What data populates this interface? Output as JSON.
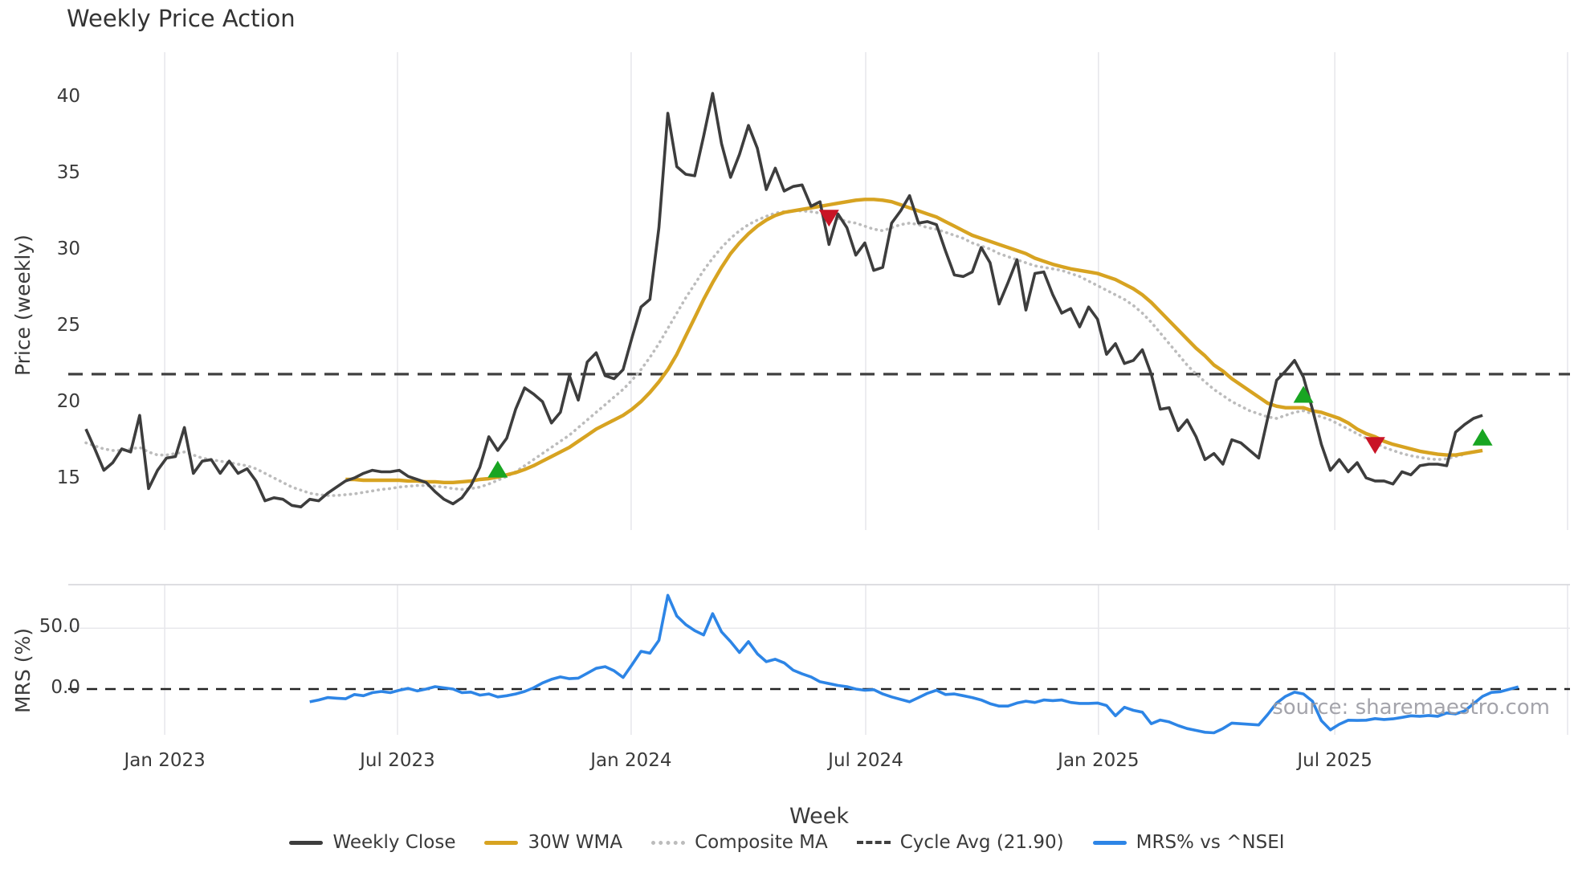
{
  "title": "Weekly Price Action",
  "source_note": "source: sharemaestro.com",
  "x_axis_title": "Week",
  "price_axis_label": "Price (weekly)",
  "mrs_axis_label": "MRS (%)",
  "legend": [
    {
      "label": "Weekly Close",
      "style": "solid",
      "color": "#3d3d3d"
    },
    {
      "label": "30W WMA",
      "style": "solid",
      "color": "#d7a321"
    },
    {
      "label": "Composite MA",
      "style": "dotted",
      "color": "#bcbcbc"
    },
    {
      "label": "Cycle Avg (21.90)",
      "style": "dashed",
      "color": "#404040"
    },
    {
      "label": "MRS% vs ^NSEI",
      "style": "solid",
      "color": "#2d85e6"
    }
  ],
  "colors": {
    "weekly_close": "#3d3d3d",
    "wma30": "#d7a321",
    "composite": "#bcbcbc",
    "cycle_avg": "#404040",
    "mrs": "#2d85e6",
    "buy_marker": "#18a522",
    "sell_marker": "#c91426",
    "gridline": "#e8e8ec",
    "panel_border": "#d4d4d8",
    "zero_dash": "#222222"
  },
  "x_ticks": [
    {
      "label": "Jan 2023",
      "week": 8.8
    },
    {
      "label": "Jul 2023",
      "week": 34.8
    },
    {
      "label": "Jan 2024",
      "week": 60.9
    },
    {
      "label": "Jul 2024",
      "week": 87.1
    },
    {
      "label": "Jan 2025",
      "week": 113.1
    },
    {
      "label": "Jul 2025",
      "week": 139.5
    },
    {
      "label": "",
      "week": 165.5
    }
  ],
  "chart_data": [
    {
      "type": "line",
      "title": "Weekly Price Action",
      "ylabel": "Price (weekly)",
      "xlabel": "Week",
      "x_unit": "week_index (week 0 = first plotted week, ~Nov 2022; 26.1 weeks per axis half-year)",
      "xlim": [
        -2.2,
        165.9
      ],
      "ylim": [
        11.7,
        43.0
      ],
      "yticks": [
        15,
        20,
        25,
        30,
        35,
        40
      ],
      "grid": "vertical-only",
      "cycle_avg_line": 21.9,
      "series": [
        {
          "name": "Weekly Close",
          "style": "solid",
          "start_week": 0,
          "values": [
            18.3,
            17.0,
            15.6,
            16.1,
            17.0,
            16.8,
            19.2,
            14.4,
            15.6,
            16.4,
            16.5,
            18.4,
            15.4,
            16.2,
            16.3,
            15.4,
            16.2,
            15.4,
            15.7,
            14.9,
            13.6,
            13.8,
            13.7,
            13.3,
            13.2,
            13.7,
            13.6,
            14.1,
            14.5,
            14.9,
            15.1,
            15.4,
            15.6,
            15.5,
            15.5,
            15.6,
            15.2,
            15.0,
            14.8,
            14.2,
            13.7,
            13.4,
            13.8,
            14.6,
            15.8,
            17.8,
            16.9,
            17.7,
            19.6,
            21.0,
            20.6,
            20.1,
            18.7,
            19.4,
            21.8,
            20.2,
            22.7,
            23.3,
            21.8,
            21.6,
            22.2,
            24.3,
            26.3,
            26.8,
            31.5,
            39.0,
            35.5,
            35.0,
            34.9,
            37.5,
            40.3,
            37.0,
            34.8,
            36.3,
            38.2,
            36.7,
            34.0,
            35.4,
            33.9,
            34.2,
            34.3,
            32.9,
            33.2,
            30.4,
            32.4,
            31.5,
            29.7,
            30.5,
            28.7,
            28.9,
            31.8,
            32.6,
            33.6,
            31.8,
            31.9,
            31.7,
            30.0,
            28.4,
            28.3,
            28.6,
            30.2,
            29.2,
            26.5,
            27.9,
            29.4,
            26.1,
            28.5,
            28.6,
            27.1,
            25.9,
            26.2,
            25.0,
            26.3,
            25.5,
            23.2,
            23.9,
            22.6,
            22.8,
            23.5,
            21.9,
            19.6,
            19.7,
            18.2,
            18.9,
            17.8,
            16.3,
            16.7,
            16.0,
            17.6,
            17.4,
            16.9,
            16.4,
            19.0,
            21.5,
            22.1,
            22.8,
            21.7,
            19.6,
            17.3,
            15.6,
            16.3,
            15.5,
            16.1,
            15.1,
            14.9,
            14.9,
            14.7,
            15.5,
            15.3,
            15.9,
            16.0,
            16.0,
            15.9,
            18.1,
            18.6,
            19.0,
            19.2
          ]
        },
        {
          "name": "30W WMA",
          "style": "solid",
          "start_week": 29,
          "values": [
            15.0,
            15.0,
            14.95,
            14.95,
            14.95,
            14.95,
            14.95,
            14.9,
            14.9,
            14.85,
            14.85,
            14.8,
            14.8,
            14.85,
            14.9,
            15.0,
            15.05,
            15.15,
            15.3,
            15.45,
            15.65,
            15.9,
            16.2,
            16.5,
            16.8,
            17.1,
            17.5,
            17.9,
            18.3,
            18.6,
            18.9,
            19.2,
            19.6,
            20.1,
            20.7,
            21.4,
            22.2,
            23.2,
            24.4,
            25.6,
            26.8,
            27.9,
            28.9,
            29.8,
            30.5,
            31.1,
            31.6,
            32.0,
            32.3,
            32.5,
            32.6,
            32.7,
            32.8,
            32.9,
            33.0,
            33.1,
            33.2,
            33.3,
            33.35,
            33.35,
            33.3,
            33.2,
            33.0,
            32.8,
            32.6,
            32.4,
            32.2,
            31.9,
            31.6,
            31.3,
            31.0,
            30.8,
            30.6,
            30.4,
            30.2,
            30.0,
            29.8,
            29.5,
            29.3,
            29.1,
            28.95,
            28.8,
            28.7,
            28.6,
            28.5,
            28.3,
            28.1,
            27.8,
            27.5,
            27.1,
            26.6,
            26.0,
            25.4,
            24.8,
            24.2,
            23.6,
            23.1,
            22.5,
            22.1,
            21.6,
            21.2,
            20.8,
            20.4,
            20.0,
            19.8,
            19.7,
            19.7,
            19.7,
            19.5,
            19.4,
            19.2,
            19.0,
            18.7,
            18.3,
            18.0,
            17.8,
            17.5,
            17.3,
            17.15,
            17.0,
            16.85,
            16.75,
            16.65,
            16.6,
            16.6,
            16.7,
            16.8,
            16.9
          ]
        },
        {
          "name": "Composite MA",
          "style": "dotted",
          "start_week": 0,
          "values": [
            17.4,
            17.2,
            17.0,
            16.9,
            16.9,
            17.0,
            17.1,
            16.8,
            16.6,
            16.6,
            16.7,
            16.8,
            16.6,
            16.4,
            16.3,
            16.2,
            16.1,
            16.0,
            15.9,
            15.7,
            15.4,
            15.1,
            14.8,
            14.5,
            14.3,
            14.1,
            14.0,
            13.95,
            13.95,
            14.0,
            14.05,
            14.15,
            14.25,
            14.35,
            14.4,
            14.5,
            14.55,
            14.6,
            14.6,
            14.55,
            14.5,
            14.4,
            14.35,
            14.4,
            14.5,
            14.7,
            14.95,
            15.2,
            15.5,
            15.9,
            16.3,
            16.7,
            17.1,
            17.5,
            17.9,
            18.4,
            18.9,
            19.4,
            19.9,
            20.4,
            20.9,
            21.5,
            22.2,
            23.0,
            23.9,
            24.9,
            25.9,
            26.9,
            27.8,
            28.7,
            29.5,
            30.2,
            30.8,
            31.3,
            31.7,
            32.0,
            32.25,
            32.45,
            32.55,
            32.6,
            32.6,
            32.55,
            32.45,
            32.3,
            32.1,
            31.9,
            31.8,
            31.6,
            31.4,
            31.3,
            31.5,
            31.7,
            31.8,
            31.7,
            31.5,
            31.4,
            31.2,
            31.0,
            30.8,
            30.5,
            30.3,
            30.1,
            29.8,
            29.6,
            29.4,
            29.2,
            29.0,
            28.9,
            28.8,
            28.7,
            28.5,
            28.3,
            28.0,
            27.7,
            27.4,
            27.1,
            26.8,
            26.4,
            25.9,
            25.3,
            24.6,
            23.9,
            23.2,
            22.5,
            21.9,
            21.4,
            20.9,
            20.5,
            20.1,
            19.8,
            19.5,
            19.3,
            19.1,
            19.0,
            19.2,
            19.4,
            19.5,
            19.3,
            19.1,
            18.9,
            18.6,
            18.3,
            18.0,
            17.7,
            17.4,
            17.1,
            16.9,
            16.7,
            16.55,
            16.45,
            16.35,
            16.3,
            16.35,
            16.5,
            16.65
          ]
        },
        {
          "name": "Cycle Avg",
          "style": "dashed",
          "constant": 21.9
        }
      ],
      "markers": [
        {
          "type": "buy",
          "shape": "triangle-up",
          "points": [
            {
              "week": 46,
              "price": 15.6
            },
            {
              "week": 136,
              "price": 20.5
            },
            {
              "week": 156,
              "price": 17.7
            }
          ]
        },
        {
          "type": "sell",
          "shape": "triangle-down",
          "points": [
            {
              "week": 83,
              "price": 32.2
            },
            {
              "week": 144,
              "price": 17.3
            }
          ]
        }
      ]
    },
    {
      "type": "line",
      "ylabel": "MRS (%)",
      "xlim": [
        -2.2,
        165.9
      ],
      "ylim": [
        -38,
        86
      ],
      "yticks": [
        {
          "label": "50.0",
          "value": 50
        },
        {
          "label": "0.0",
          "value": 0
        }
      ],
      "zero_dashed_line": 0,
      "gridline_value": 50,
      "series": [
        {
          "name": "MRS% vs ^NSEI",
          "style": "solid",
          "start_week": 25,
          "values": [
            -10.5,
            -9,
            -7,
            -7.5,
            -8,
            -4.5,
            -5.5,
            -3,
            -2,
            -3,
            -1,
            0.5,
            -1.5,
            0,
            2,
            1,
            0,
            -3,
            -2.5,
            -5,
            -4,
            -6.5,
            -5.5,
            -4,
            -2,
            1,
            5,
            8,
            10,
            8.5,
            9,
            13,
            17,
            18.4,
            15,
            9.5,
            20,
            31,
            29.5,
            40,
            77,
            60,
            53,
            48,
            44.5,
            62,
            47,
            39,
            30,
            39,
            29,
            22.5,
            24.5,
            21.5,
            15.5,
            12.5,
            10,
            6,
            4.5,
            3,
            2,
            0,
            -1,
            -0.5,
            -4,
            -6.5,
            -8.5,
            -10.5,
            -7,
            -3.5,
            -1,
            -4.5,
            -4,
            -5.5,
            -7,
            -9,
            -12,
            -14,
            -14,
            -11.5,
            -10,
            -11,
            -9,
            -9.5,
            -9,
            -11,
            -11.8,
            -11.8,
            -11.5,
            -13.5,
            -22,
            -15,
            -17.5,
            -19,
            -28.5,
            -25.5,
            -27,
            -30,
            -32.5,
            -34,
            -35.5,
            -36,
            -32.5,
            -28,
            -28.5,
            -29,
            -29.5,
            -21,
            -11.5,
            -6,
            -2.6,
            -4,
            -10,
            -26,
            -33.5,
            -29,
            -25.6,
            -25.8,
            -25.6,
            -24.3,
            -25,
            -24.5,
            -23.3,
            -22,
            -22.4,
            -21.7,
            -22.4,
            -19.7,
            -20.4,
            -18,
            -12,
            -6,
            -2.8,
            -2.2,
            -0.2,
            1.8
          ]
        }
      ]
    }
  ]
}
